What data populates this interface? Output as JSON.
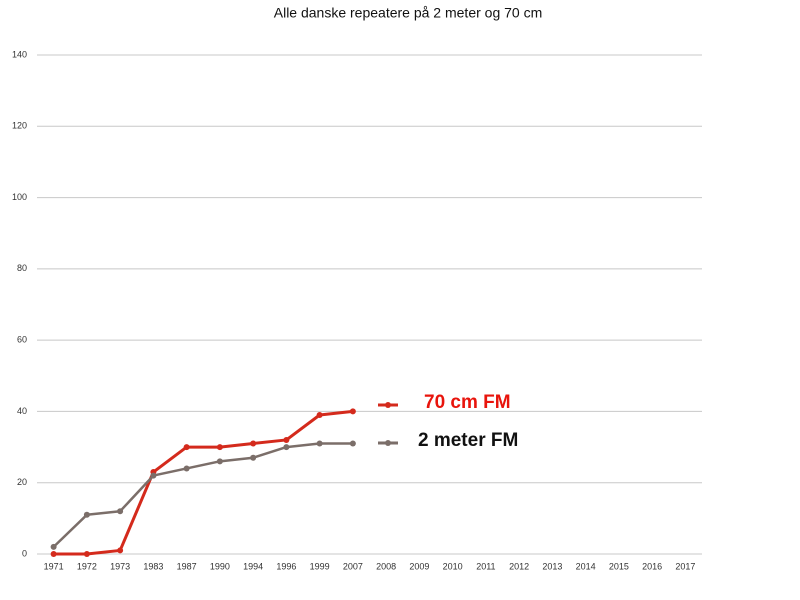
{
  "chart_data": {
    "type": "line",
    "title": "Alle danske repeatere på 2 meter og 70 cm",
    "categories": [
      "1971",
      "1972",
      "1973",
      "1983",
      "1987",
      "1990",
      "1994",
      "1996",
      "1999",
      "2007",
      "2008",
      "2009",
      "2010",
      "2011",
      "2012",
      "2013",
      "2014",
      "2015",
      "2016",
      "2017"
    ],
    "series": [
      {
        "name": "70 cm FM",
        "color": "#d42a1c",
        "label_color": "#e8140c",
        "values": [
          0,
          0,
          1,
          23,
          30,
          30,
          31,
          32,
          39,
          40,
          null,
          null,
          null,
          null,
          null,
          null,
          null,
          null,
          null,
          null
        ]
      },
      {
        "name": "2 meter FM",
        "color": "#7b6e69",
        "label_color": "#111111",
        "values": [
          2,
          11,
          12,
          22,
          24,
          26,
          27,
          30,
          31,
          31,
          null,
          null,
          null,
          null,
          null,
          null,
          null,
          null,
          null,
          null
        ]
      }
    ],
    "ylim": [
      0,
      140
    ],
    "yticks": [
      0,
      20,
      40,
      60,
      80,
      100,
      120,
      140
    ],
    "grid": true,
    "legend": "right"
  }
}
